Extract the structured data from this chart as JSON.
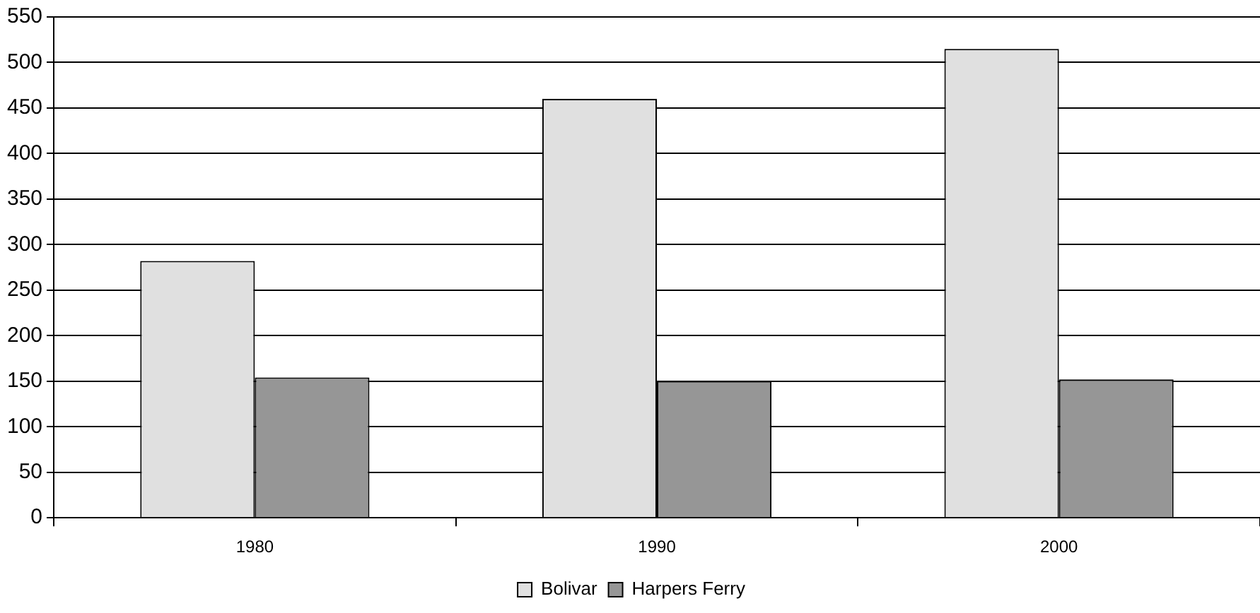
{
  "chart_data": {
    "type": "bar",
    "categories": [
      "1980",
      "1990",
      "2000"
    ],
    "series": [
      {
        "name": "Bolivar",
        "color": "#e0e0e0",
        "values": [
          282,
          460,
          515
        ]
      },
      {
        "name": "Harpers Ferry",
        "color": "#969696",
        "values": [
          154,
          150,
          152
        ]
      }
    ],
    "ylim": [
      0,
      550
    ],
    "yticks": [
      0,
      50,
      100,
      150,
      200,
      250,
      300,
      350,
      400,
      450,
      500,
      550
    ],
    "grid": "y",
    "legend": "bottom"
  }
}
